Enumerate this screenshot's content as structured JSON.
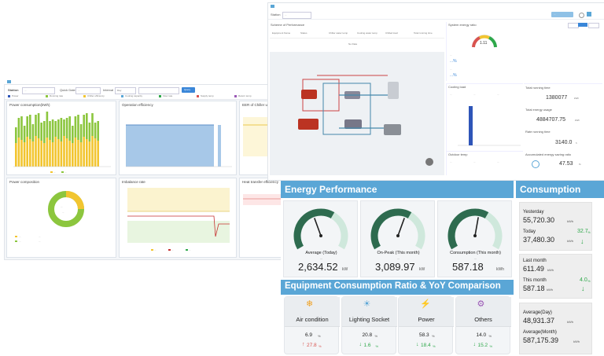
{
  "left_dashboard": {
    "station_label": "Station",
    "station_value": "...",
    "query_label": "Quick Date",
    "query_value": "...",
    "interval_label": "Interval",
    "interval_value": "Day",
    "query_button": "Query",
    "legend_items": [
      "Power",
      "Running rate",
      "Chiller efficiency",
      "Cooling capacity",
      "Flow rate",
      "Supply temp",
      "Return temp"
    ],
    "panels": {
      "power_consumption_title": "Power consumption(kWh)",
      "cop_title": "Operation efficiency",
      "ehr_title": "EER of Chiller unit",
      "pie_title": "Power composition",
      "imbalance_title": "Imbalance rate",
      "heat_transfer_title": "Heat transfer efficiency"
    },
    "pie_center_a": "...",
    "pie_center_b": "...",
    "pie_legend": [
      "...",
      "...",
      "...",
      "..."
    ],
    "line_legend": [
      "...",
      "...",
      "..."
    ],
    "bar_legend": [
      "...",
      "..."
    ]
  },
  "scada_window": {
    "station_label": "Station",
    "station_value": "...",
    "top_button": "...",
    "schematic_title": "Scheme of Performance",
    "schematic_columns": [
      "Equipment Name",
      "Status",
      "Chiller water temp",
      "Cooling water temp",
      "Chilled load",
      "Total running time"
    ],
    "no_data": "No Data",
    "system_ratio_title": "System energy ratio",
    "gauge_value": "1.11",
    "metrics": [
      {
        "label": "...",
        "value": "...%"
      },
      {
        "label": "...",
        "value": "...%"
      }
    ],
    "cooling_title": "Cooling load",
    "cooling_stats": [
      "...",
      "...",
      "..."
    ],
    "total_running_title": "Total running time",
    "total_running_value": "1380077",
    "total_running_unit": "kWh",
    "total_energy_title": "Total energy usage",
    "total_energy_value": "4884707.75",
    "total_energy_unit": "kWh",
    "rate_title": "Rate running time",
    "rate_value": "3140.0",
    "rate_unit": "h",
    "accumulated_title": "Accumulated energy saving ratio",
    "accumulated_value": "47.53",
    "accumulated_unit": "%",
    "outdoor_title": "Outdoor temp",
    "outdoor_values": [
      "...",
      "...",
      "..."
    ]
  },
  "energy_performance": {
    "title": "Energy Performance",
    "gauges": [
      {
        "label": "Average (Today)",
        "sub": "...",
        "value": "2,634.52",
        "unit": "kW"
      },
      {
        "label": "On-Peak (This month)",
        "sub": "...",
        "value": "3,089.97",
        "unit": "kW"
      },
      {
        "label": "Consumption (This month)",
        "sub": "...",
        "value": "587.18",
        "unit": "kWh"
      }
    ]
  },
  "equipment": {
    "title": "Equipment Consumption Ratio & YoY Comparison",
    "items": [
      {
        "name": "Air condition",
        "ratio": "6.9",
        "ratio_unit": "%",
        "yoy": "27.8",
        "yoy_unit": "%",
        "trend": "up",
        "icon": "air-condition-icon",
        "icon_color": "#f0a020"
      },
      {
        "name": "Lighting Socket",
        "ratio": "20.8",
        "ratio_unit": "%",
        "yoy": "1.6",
        "yoy_unit": "%",
        "trend": "down",
        "icon": "lightbulb-icon",
        "icon_color": "#5aa6d6"
      },
      {
        "name": "Power",
        "ratio": "58.3",
        "ratio_unit": "%",
        "yoy": "18.4",
        "yoy_unit": "%",
        "trend": "down",
        "icon": "power-plug-icon",
        "icon_color": "#4a7fc0"
      },
      {
        "name": "Others",
        "ratio": "14.0",
        "ratio_unit": "%",
        "yoy": "15.2",
        "yoy_unit": "%",
        "trend": "down",
        "icon": "others-icon",
        "icon_color": "#9b59b6"
      }
    ]
  },
  "consumption": {
    "title": "Consumption",
    "yesterday_label": "Yesterday",
    "yesterday_value": "55,720.30",
    "yesterday_unit": "kWh",
    "today_label": "Today",
    "today_value": "37,480.30",
    "today_unit": "kWh",
    "today_change": "32.7",
    "today_change_unit": "%",
    "last_month_label": "Last month",
    "last_month_value": "611.49",
    "last_month_unit": "kWh",
    "this_month_label": "This month",
    "this_month_value": "587.18",
    "this_month_unit": "kWh",
    "this_month_change": "4.0",
    "this_month_change_unit": "%",
    "avg_day_label": "Average(Day)",
    "avg_day_value": "48,931.37",
    "avg_day_unit": "kWh",
    "avg_month_label": "Average(Month)",
    "avg_month_value": "587,175.39",
    "avg_month_unit": "kWh"
  },
  "colors": {
    "header_blue": "#5aa6d6",
    "gauge_dark": "#2e6b4f",
    "gauge_light": "#cfe8dc",
    "trend_green": "#2ea84a",
    "trend_red": "#d9534f",
    "bar_green": "#8cc63e",
    "bar_yellow": "#f2c530"
  }
}
